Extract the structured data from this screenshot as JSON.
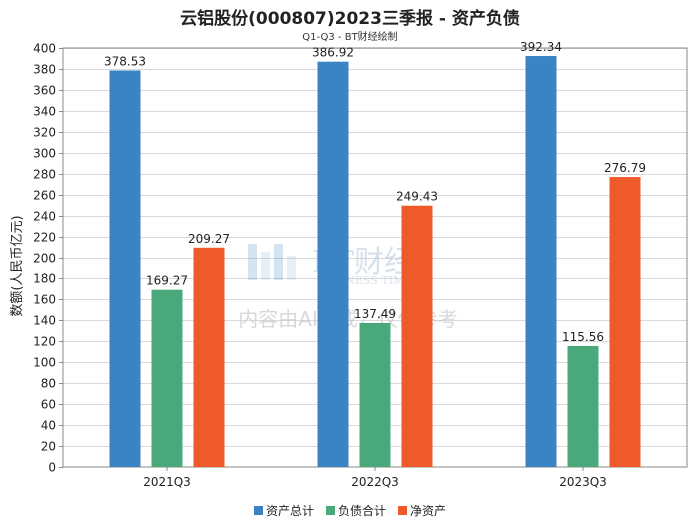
{
  "title": "云铝股份(000807)2023三季报 - 资产负债",
  "subtitle": "Q1-Q3 - BT财经绘制",
  "watermark": {
    "logo_text": "BT财经",
    "logo_sub": "BUSINESS TIMES",
    "notice": "内容由AI生成，仅供参考"
  },
  "colors": {
    "series": [
      "#3a83c4",
      "#49a97a",
      "#ef5a2a"
    ],
    "grid": "#d9d9d9",
    "axis": "#888888"
  },
  "chart_data": {
    "type": "bar",
    "ylabel": "数额(人民币亿元)",
    "xlabel": "",
    "ylim": [
      0,
      400
    ],
    "ytick_step": 20,
    "grid": true,
    "legend_position": "bottom",
    "categories": [
      "2021Q3",
      "2022Q3",
      "2023Q3"
    ],
    "series": [
      {
        "name": "资产总计",
        "values": [
          378.53,
          386.92,
          392.34
        ]
      },
      {
        "name": "负债合计",
        "values": [
          169.27,
          137.49,
          115.56
        ]
      },
      {
        "name": "净资产",
        "values": [
          209.27,
          249.43,
          276.79
        ]
      }
    ]
  }
}
